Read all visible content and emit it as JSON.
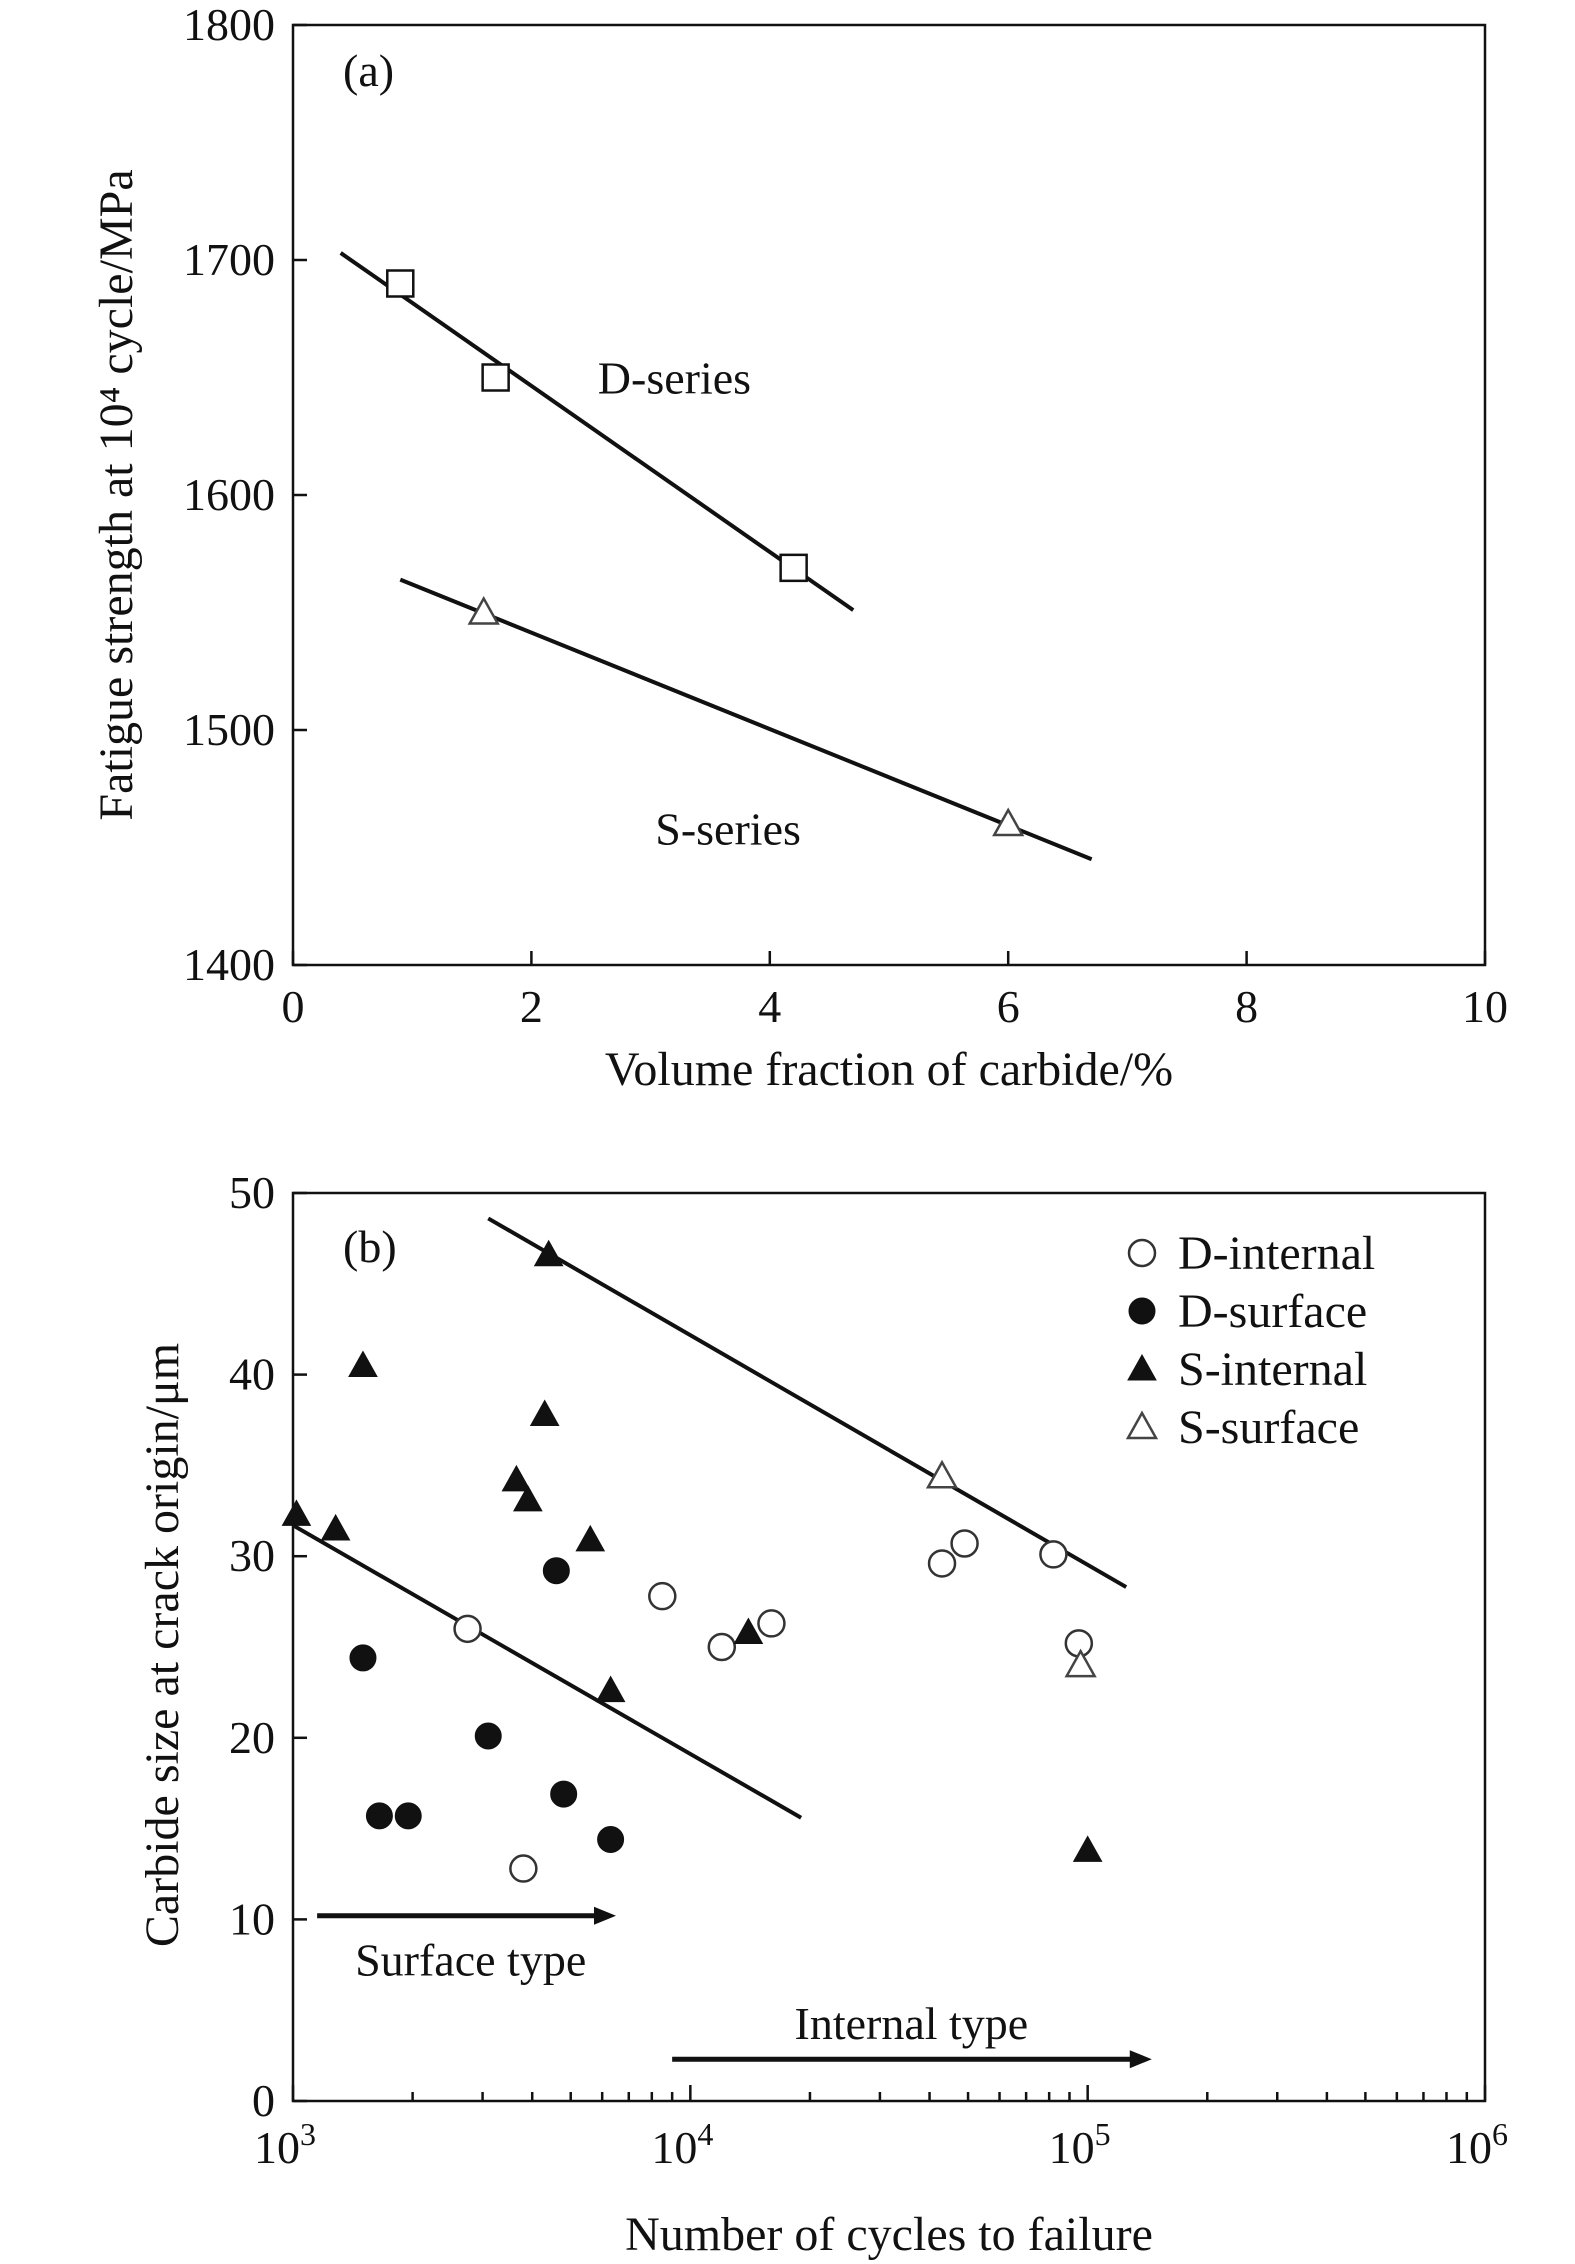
{
  "chart_data": [
    {
      "panel_label": "(a)",
      "type": "scatter",
      "xlabel": "Volume fraction of carbide/%",
      "ylabel": "Fatigue strength at 10⁴ cycle/MPa",
      "xlim": [
        0,
        10
      ],
      "ylim": [
        1400,
        1800
      ],
      "xticks": [
        0,
        2,
        4,
        6,
        8,
        10
      ],
      "yticks": [
        1400,
        1500,
        1600,
        1700,
        1800
      ],
      "grid": false,
      "series": [
        {
          "name": "D-series",
          "marker": "open-square",
          "points": [
            [
              0.9,
              1690
            ],
            [
              1.7,
              1650
            ],
            [
              4.2,
              1569
            ]
          ],
          "fit": [
            [
              0.4,
              1703
            ],
            [
              4.7,
              1551
            ]
          ]
        },
        {
          "name": "S-series",
          "marker": "open-triangle",
          "points": [
            [
              1.6,
              1550
            ],
            [
              6.0,
              1460
            ]
          ],
          "fit": [
            [
              0.9,
              1564
            ],
            [
              6.7,
              1445
            ]
          ]
        }
      ],
      "annotations": [
        {
          "text": "D-series",
          "x": 3.2,
          "y": 1650
        },
        {
          "text": "S-series",
          "x": 3.65,
          "y": 1458
        }
      ]
    },
    {
      "panel_label": "(b)",
      "type": "scatter",
      "xlabel": "Number of cycles to failure",
      "ylabel": "Carbide size at crack origin/μm",
      "xscale": "log",
      "xlim": [
        1000,
        1000000
      ],
      "ylim": [
        0,
        50
      ],
      "xticks": [
        {
          "value": 1000,
          "base": "10",
          "exp": "3"
        },
        {
          "value": 10000,
          "base": "10",
          "exp": "4"
        },
        {
          "value": 100000,
          "base": "10",
          "exp": "5"
        },
        {
          "value": 1000000,
          "base": "10",
          "exp": "6"
        }
      ],
      "yticks": [
        0,
        10,
        20,
        30,
        40,
        50
      ],
      "grid": false,
      "legend_position": "top-right",
      "series": [
        {
          "name": "D-internal",
          "marker": "open-circle",
          "points": [
            [
              2750,
              26
            ],
            [
              3800,
              12.8
            ],
            [
              8500,
              27.8
            ],
            [
              12000,
              25
            ],
            [
              16000,
              26.3
            ],
            [
              43000,
              29.6
            ],
            [
              49000,
              30.7
            ],
            [
              82000,
              30.1
            ],
            [
              95000,
              25.2
            ]
          ]
        },
        {
          "name": "D-surface",
          "marker": "filled-circle",
          "points": [
            [
              1500,
              24.4
            ],
            [
              1650,
              15.7
            ],
            [
              1950,
              15.7
            ],
            [
              3100,
              20.1
            ],
            [
              4600,
              29.2
            ],
            [
              4800,
              16.9
            ],
            [
              6300,
              14.4
            ]
          ]
        },
        {
          "name": "S-internal",
          "marker": "filled-triangle",
          "points": [
            [
              1020,
              32.3
            ],
            [
              1280,
              31.5
            ],
            [
              1500,
              40.5
            ],
            [
              3650,
              34.2
            ],
            [
              3900,
              33.1
            ],
            [
              4300,
              37.8
            ],
            [
              4400,
              46.6
            ],
            [
              5600,
              30.9
            ],
            [
              6300,
              22.6
            ],
            [
              14000,
              25.8
            ],
            [
              100000,
              13.8
            ]
          ]
        },
        {
          "name": "S-surface",
          "marker": "open-triangle",
          "points": [
            [
              43000,
              34.4
            ],
            [
              96000,
              24
            ]
          ]
        }
      ],
      "fit_lines": [
        {
          "from": [
            3100,
            48.6
          ],
          "to": [
            125000,
            28.3
          ]
        },
        {
          "from": [
            1000,
            31.7
          ],
          "to": [
            19000,
            15.6
          ]
        }
      ],
      "annotations": [
        {
          "text": "Surface type",
          "arrow_from": [
            1150,
            10.2
          ],
          "arrow_to": [
            6500,
            10.2
          ],
          "text_pos": [
            2800,
            7.8
          ]
        },
        {
          "text": "Internal type",
          "arrow_from": [
            9000,
            2.3
          ],
          "arrow_to": [
            145000,
            2.3
          ],
          "text_pos": [
            36000,
            4.3
          ]
        }
      ]
    }
  ]
}
